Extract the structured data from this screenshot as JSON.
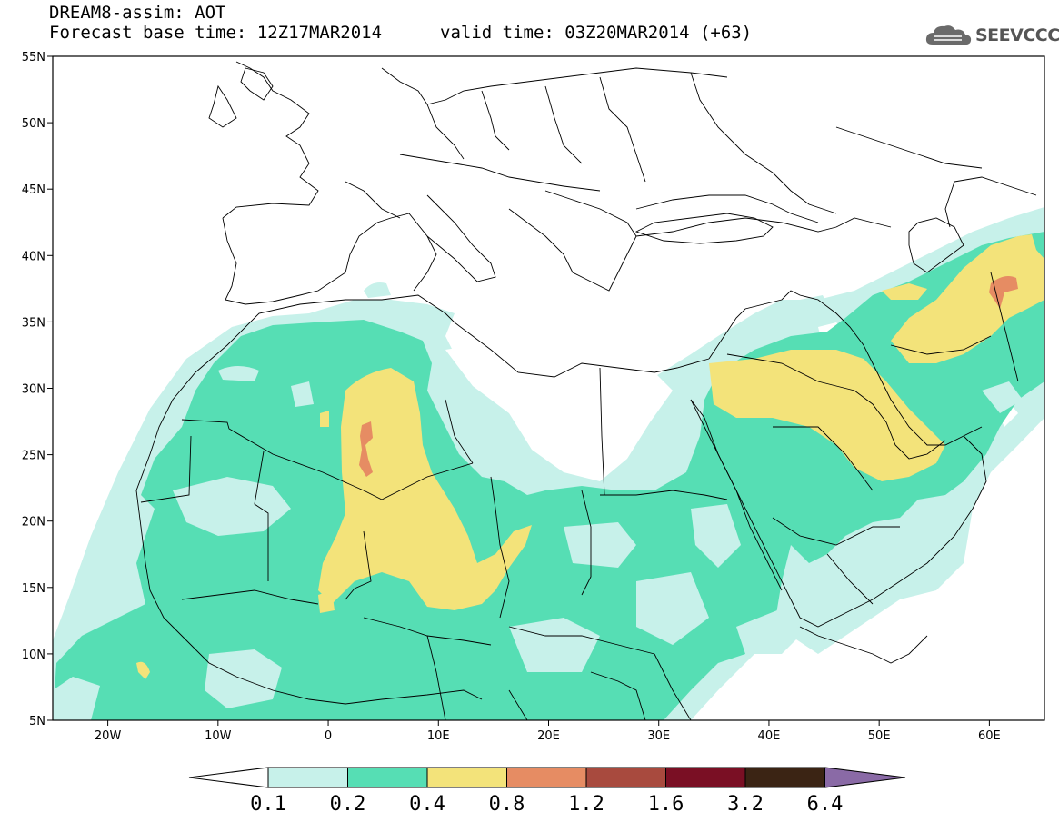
{
  "header": {
    "title": "DREAM8-assim: AOT",
    "base_time": "Forecast base time: 12Z17MAR2014",
    "valid_time": "valid time: 03Z20MAR2014 (+63)",
    "logo_text": "SEEVCCC",
    "logo_icon": "cloud-logo-icon"
  },
  "axes": {
    "lat_ticks": [
      "55N",
      "50N",
      "45N",
      "40N",
      "35N",
      "30N",
      "25N",
      "20N",
      "15N",
      "10N",
      "5N"
    ],
    "lon_ticks": [
      "20W",
      "10W",
      "0",
      "10E",
      "20E",
      "30E",
      "40E",
      "50E",
      "60E"
    ],
    "lat_range": [
      5,
      55
    ],
    "lon_range": [
      -25,
      65
    ]
  },
  "colorbar": {
    "labels": [
      "0.1",
      "0.2",
      "0.4",
      "0.8",
      "1.2",
      "1.6",
      "3.2",
      "6.4"
    ],
    "colors": [
      "#ffffff",
      "#c7f1ea",
      "#56deb4",
      "#f3e37a",
      "#e68c63",
      "#a84a3e",
      "#7a0f24",
      "#3b2414",
      "#8a6aa6"
    ]
  },
  "field": {
    "variable": "AOT",
    "levels": [
      0.1,
      0.2,
      0.4,
      0.8,
      1.2
    ],
    "colors": {
      "0.1": "#c7f1ea",
      "0.2": "#56deb4",
      "0.4": "#f3e37a",
      "0.8": "#e68c63"
    }
  }
}
